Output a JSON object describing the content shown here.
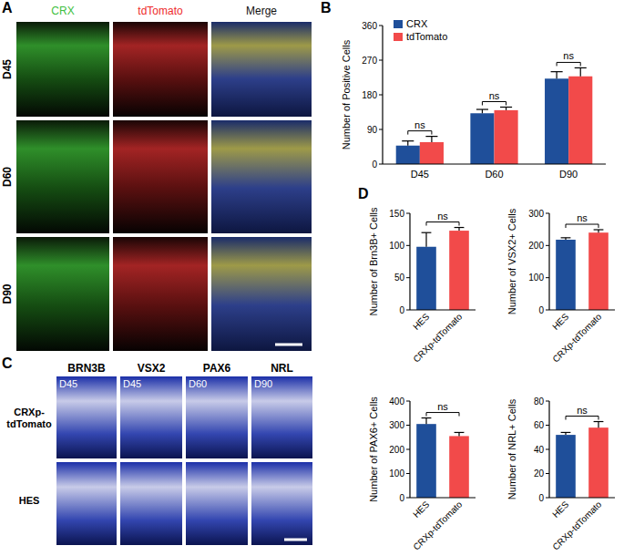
{
  "panel_labels": [
    "A",
    "B",
    "C",
    "D"
  ],
  "panel_a": {
    "columns": [
      {
        "label": "CRX",
        "color": "#3fbf3f"
      },
      {
        "label": "tdTomato",
        "color": "#ee2b2b"
      },
      {
        "label": "Merge",
        "color": "#111111"
      }
    ],
    "rows": [
      "D45",
      "D60",
      "D90"
    ]
  },
  "panel_c": {
    "columns": [
      "BRN3B",
      "VSX2",
      "PAX6",
      "NRL"
    ],
    "rows": [
      "CRXp-tdTomato",
      "HES"
    ],
    "stage_labels": [
      "D45",
      "D45",
      "D60",
      "D90"
    ]
  },
  "chart_data": [
    {
      "type": "bar",
      "categories": [
        "D45",
        "D60",
        "D90"
      ],
      "series": [
        {
          "name": "CRX",
          "color": "#1f4f9a",
          "values": [
            48,
            132,
            222
          ],
          "errors": [
            12,
            10,
            18
          ]
        },
        {
          "name": "tdTomato",
          "color": "#f24a4a",
          "values": [
            57,
            140,
            228
          ],
          "errors": [
            15,
            8,
            22
          ]
        }
      ],
      "ylabel": "Number of Positive Cells",
      "ylim": [
        0,
        360
      ],
      "yticks": [
        0,
        90,
        180,
        270,
        360
      ],
      "legend": "upper left",
      "annotations": [
        "ns",
        "ns",
        "ns"
      ]
    },
    {
      "type": "bar",
      "categories": [
        "HES",
        "CRXp-tdTomato"
      ],
      "values": [
        98,
        123
      ],
      "errors": [
        22,
        5
      ],
      "colors": [
        "#1f4f9a",
        "#f24a4a"
      ],
      "ylabel": "Number of Brn3B+ Cells",
      "ylim": [
        0,
        150
      ],
      "yticks": [
        0,
        50,
        100,
        150
      ],
      "annotations": [
        "ns"
      ]
    },
    {
      "type": "bar",
      "categories": [
        "HES",
        "CRXp-tdTomato"
      ],
      "values": [
        218,
        240
      ],
      "errors": [
        6,
        9
      ],
      "colors": [
        "#1f4f9a",
        "#f24a4a"
      ],
      "ylabel": "Number of VSX2+ Cells",
      "ylim": [
        0,
        300
      ],
      "yticks": [
        0,
        100,
        200,
        300
      ],
      "annotations": [
        "ns"
      ]
    },
    {
      "type": "bar",
      "categories": [
        "HES",
        "CRXp-tdTomato"
      ],
      "values": [
        305,
        255
      ],
      "errors": [
        25,
        15
      ],
      "colors": [
        "#1f4f9a",
        "#f24a4a"
      ],
      "ylabel": "Number of PAX6+ Cells",
      "ylim": [
        0,
        400
      ],
      "yticks": [
        0,
        100,
        200,
        300,
        400
      ],
      "annotations": [
        "ns"
      ]
    },
    {
      "type": "bar",
      "categories": [
        "HES",
        "CRXp-tdTomato"
      ],
      "values": [
        52,
        58
      ],
      "errors": [
        2,
        5
      ],
      "colors": [
        "#1f4f9a",
        "#f24a4a"
      ],
      "ylabel": "Number of NRL+ Cells",
      "ylim": [
        0,
        80
      ],
      "yticks": [
        0,
        20,
        40,
        60,
        80
      ],
      "annotations": [
        "ns"
      ]
    }
  ]
}
